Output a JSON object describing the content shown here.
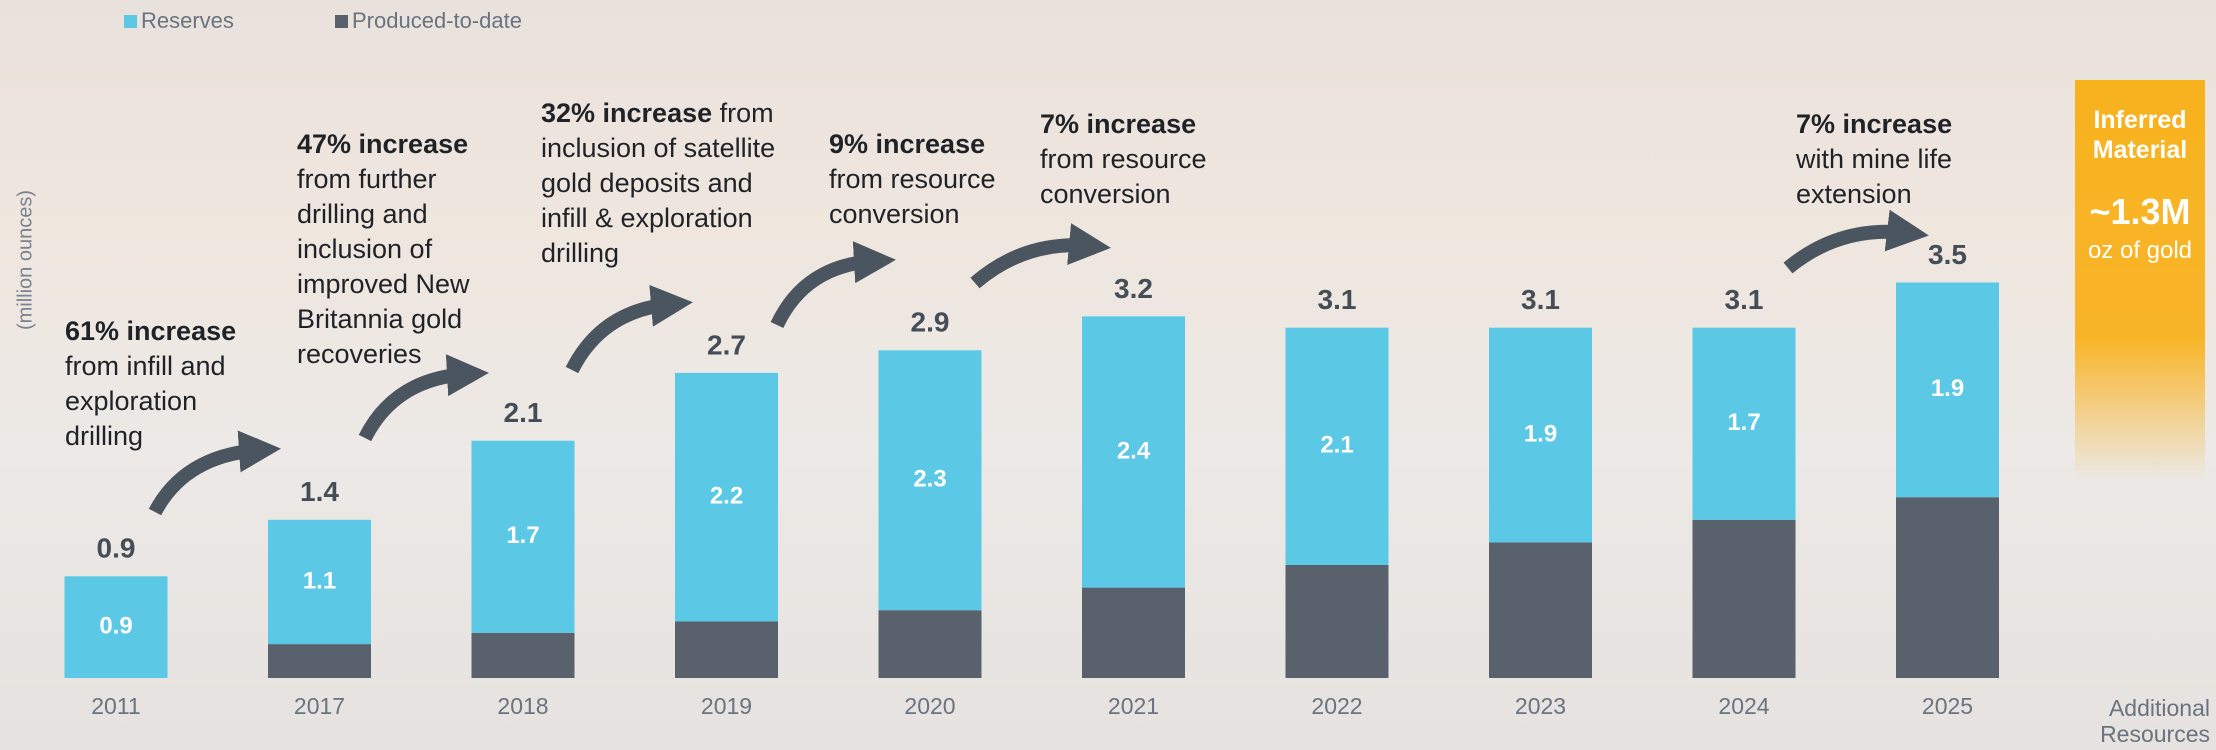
{
  "chart_data": {
    "type": "stacked-bar",
    "y_label": "(million ounces)",
    "categories": [
      "2011",
      "2017",
      "2018",
      "2019",
      "2020",
      "2021",
      "2022",
      "2023",
      "2024",
      "2025"
    ],
    "series": [
      {
        "name": "Reserves",
        "color": "#5bc8e6",
        "values": [
          0.9,
          1.1,
          1.7,
          2.2,
          2.3,
          2.4,
          2.1,
          1.9,
          1.7,
          1.9
        ]
      },
      {
        "name": "Produced-to-date",
        "color": "#59626c",
        "values": [
          0,
          0.3,
          0.4,
          0.5,
          0.6,
          0.8,
          1.0,
          1.2,
          1.4,
          1.6
        ]
      }
    ],
    "totals": [
      0.9,
      1.4,
      2.1,
      2.7,
      2.9,
      3.2,
      3.1,
      3.1,
      3.1,
      3.5
    ],
    "ylim": [
      0,
      6
    ],
    "annotations": [
      {
        "bold": "61% increase",
        "text": "from infill and exploration drilling"
      },
      {
        "bold": "47% increase",
        "text": "from further drilling and inclusion of improved New Britannia gold recoveries"
      },
      {
        "bold": "32% increase",
        "text": "from inclusion of satellite gold deposits and infill & exploration drilling"
      },
      {
        "bold": "9% increase",
        "text": "from resource conversion"
      },
      {
        "bold": "7% increase",
        "text": "from resource conversion"
      },
      {
        "bold": "7% increase",
        "text": "with mine life extension"
      }
    ],
    "additional": {
      "title": "Inferred Material",
      "amount": "~1.3M",
      "unit": "oz of gold",
      "label": "Additional Resources"
    }
  }
}
